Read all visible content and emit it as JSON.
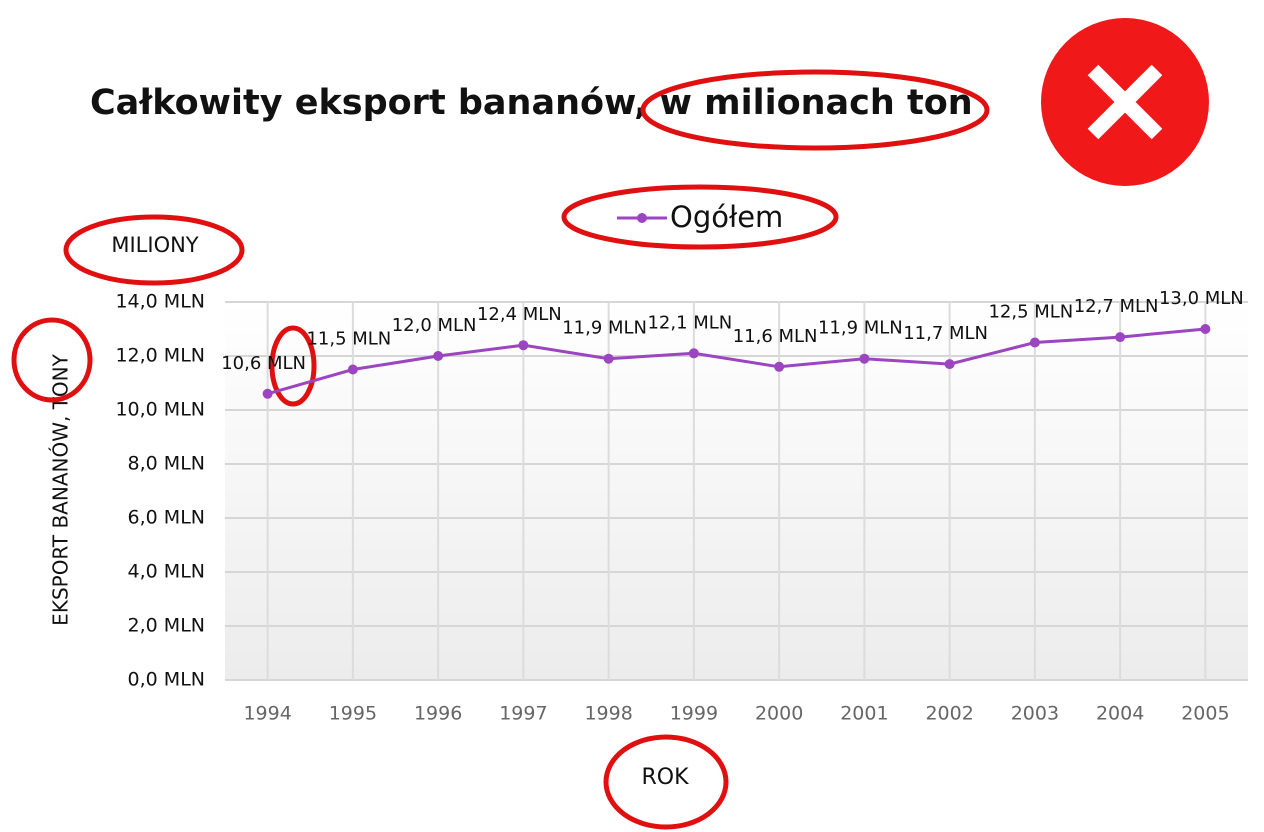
{
  "chart_data": {
    "type": "line",
    "title": "Całkowity eksport bananów, w milionach ton",
    "y_unit_label": "MILIONY",
    "ylabel": "EKSPORT BANANÓW, TONY",
    "xlabel": "ROK",
    "categories": [
      "1994",
      "1995",
      "1996",
      "1997",
      "1998",
      "1999",
      "2000",
      "2001",
      "2002",
      "2003",
      "2004",
      "2005"
    ],
    "series": [
      {
        "name": "Ogółem",
        "color": "#9b45c0",
        "values": [
          10.6,
          11.5,
          12.0,
          12.4,
          11.9,
          12.1,
          11.6,
          11.9,
          11.7,
          12.5,
          12.7,
          13.0
        ],
        "value_labels": [
          "10,6 MLN",
          "11,5 MLN",
          "12,0 MLN",
          "12,4 MLN",
          "11,9 MLN",
          "12,1 MLN",
          "11,6 MLN",
          "11,9 MLN",
          "11,7 MLN",
          "12,5 MLN",
          "12,7 MLN",
          "13,0 MLN"
        ]
      }
    ],
    "ylim": [
      0,
      14
    ],
    "yticks": [
      {
        "value": 0,
        "label": "0,0 MLN"
      },
      {
        "value": 2,
        "label": "2,0 MLN"
      },
      {
        "value": 4,
        "label": "4,0 MLN"
      },
      {
        "value": 6,
        "label": "6,0 MLN"
      },
      {
        "value": 8,
        "label": "8,0 MLN"
      },
      {
        "value": 10,
        "label": "10,0 MLN"
      },
      {
        "value": 12,
        "label": "12,0 MLN"
      },
      {
        "value": 14,
        "label": "14,0 MLN"
      }
    ],
    "grid": true
  }
}
